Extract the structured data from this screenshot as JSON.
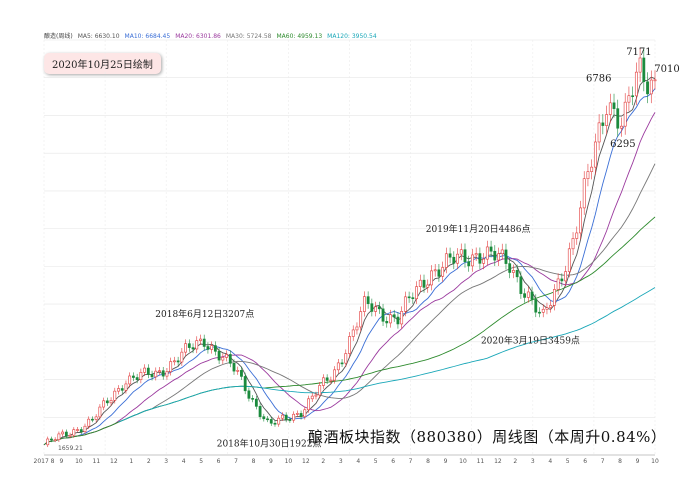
{
  "legend": {
    "items": [
      {
        "text": "酿造(周线)",
        "color": "#444444"
      },
      {
        "text": "MA5: 6630.10",
        "color": "#555555"
      },
      {
        "text": "MA10: 6684.45",
        "color": "#3b6fd6"
      },
      {
        "text": "MA20: 6301.86",
        "color": "#9b3a9e"
      },
      {
        "text": "MA30: 5724.58",
        "color": "#777777"
      },
      {
        "text": "MA60: 4959.13",
        "color": "#2e8b2e"
      },
      {
        "text": "MA120: 3950.54",
        "color": "#1aa7b8"
      }
    ]
  },
  "date_badge": "2020年10月25日绘制",
  "caption": "酿酒板块指数（880380）周线图（本周升0.84%）",
  "chart_data": {
    "type": "candlestick",
    "title": "酿酒板块指数（880380）周线图（本周升0.84%）",
    "x_range": [
      "2017-08",
      "2020-10"
    ],
    "y_range": [
      1500,
      7600
    ],
    "x_ticks": [
      "2017 8",
      "9",
      "10",
      "11",
      "12",
      "1",
      "2",
      "3",
      "4",
      "5",
      "6",
      "7",
      "8",
      "9",
      "10",
      "12",
      "2",
      "3",
      "4",
      "5",
      "6",
      "7",
      "8",
      "9",
      "10",
      "11",
      "12",
      "2",
      "3",
      "4",
      "5",
      "6",
      "7",
      "8",
      "9",
      "10"
    ],
    "price_path": [
      {
        "date": "2017-08",
        "value": 1650
      },
      {
        "date": "2017-11",
        "value": 2000
      },
      {
        "date": "2018-01",
        "value": 2600
      },
      {
        "date": "2018-03",
        "value": 2700
      },
      {
        "date": "2018-06",
        "value": 3207
      },
      {
        "date": "2018-08",
        "value": 2700
      },
      {
        "date": "2018-10",
        "value": 1922
      },
      {
        "date": "2018-12",
        "value": 2150
      },
      {
        "date": "2019-02",
        "value": 2700
      },
      {
        "date": "2019-04",
        "value": 3700
      },
      {
        "date": "2019-06",
        "value": 3500
      },
      {
        "date": "2019-08",
        "value": 4200
      },
      {
        "date": "2019-11",
        "value": 4486
      },
      {
        "date": "2020-01",
        "value": 4300
      },
      {
        "date": "2020-03",
        "value": 3459
      },
      {
        "date": "2020-05",
        "value": 4700
      },
      {
        "date": "2020-07",
        "value": 6786
      },
      {
        "date": "2020-08",
        "value": 6295
      },
      {
        "date": "2020-09",
        "value": 7171
      },
      {
        "date": "2020-10",
        "value": 7010
      }
    ],
    "moving_averages": [
      {
        "name": "MA5",
        "value": 6630.1,
        "color": "#555555"
      },
      {
        "name": "MA10",
        "value": 6684.45,
        "color": "#3b6fd6"
      },
      {
        "name": "MA20",
        "value": 6301.86,
        "color": "#9b3a9e"
      },
      {
        "name": "MA30",
        "value": 5724.58,
        "color": "#777777"
      },
      {
        "name": "MA60",
        "value": 4959.13,
        "color": "#2e8b2e"
      },
      {
        "name": "MA120",
        "value": 3950.54,
        "color": "#1aa7b8"
      }
    ],
    "annotations": [
      {
        "text": "2018年6月12日3207点",
        "date": "2018-06",
        "value": 3207
      },
      {
        "text": "2018年10月30日1922点",
        "date": "2018-10",
        "value": 1922
      },
      {
        "text": "2019年11月20日4486点",
        "date": "2019-11",
        "value": 4486
      },
      {
        "text": "2020年3月19日3459点",
        "date": "2020-03",
        "value": 3459
      }
    ],
    "peaks": [
      {
        "text": "6786",
        "date": "2020-07",
        "value": 6786
      },
      {
        "text": "7171",
        "date": "2020-09",
        "value": 7171
      },
      {
        "text": "7010",
        "date": "2020-10",
        "value": 7010
      },
      {
        "text": "6295",
        "date": "2020-08",
        "value": 6295
      }
    ],
    "start_low_label": "1659.21",
    "up_color": "#e23b3b",
    "down_color": "#1b8a3c",
    "grid": true
  }
}
